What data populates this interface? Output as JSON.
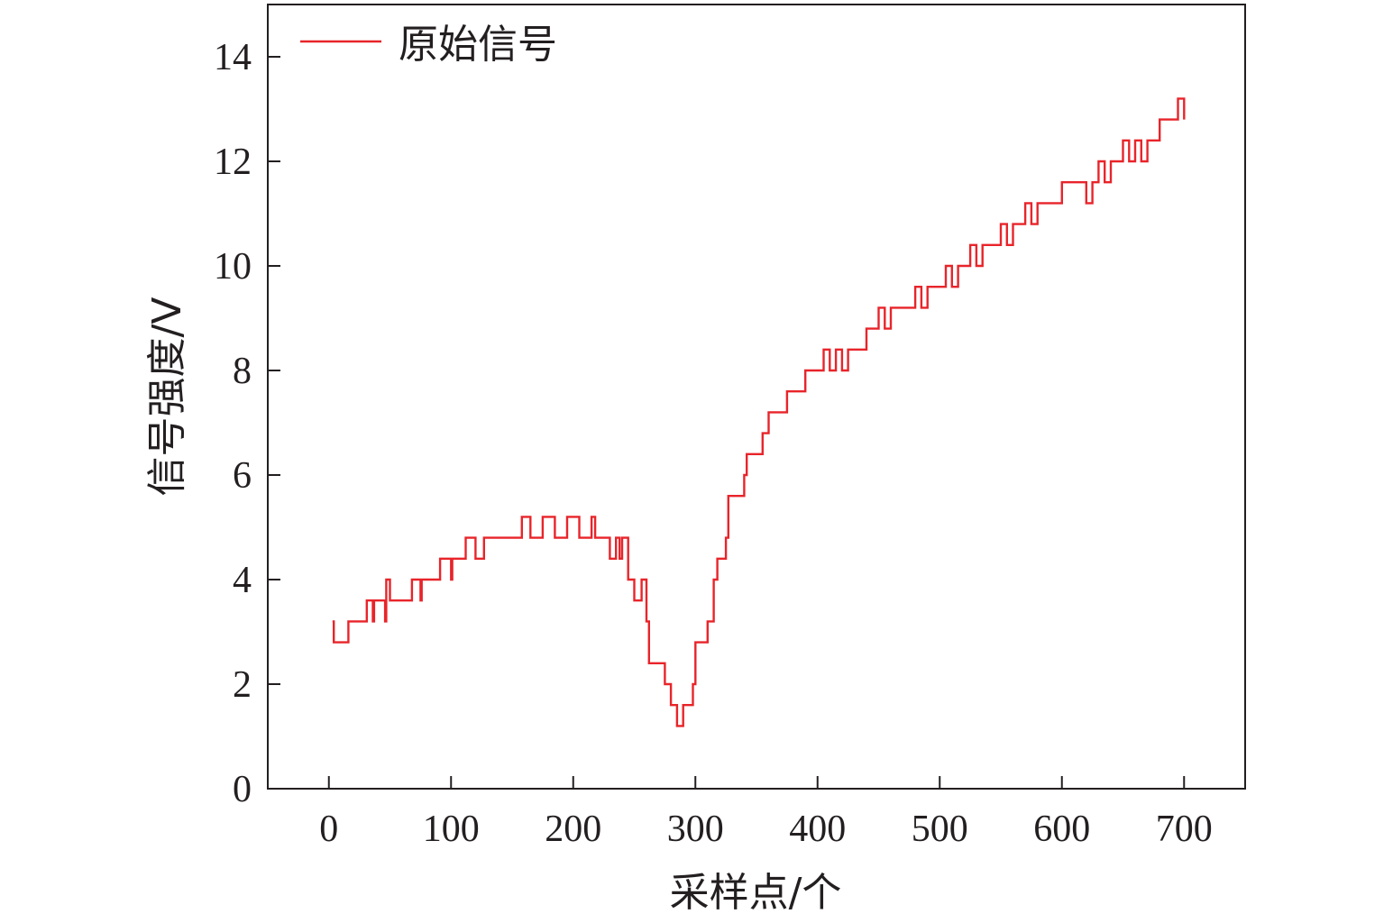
{
  "chart_data": {
    "type": "line",
    "title": "",
    "xlabel": "采样点/个",
    "ylabel": "信号强度/V",
    "xlim": [
      -50,
      750
    ],
    "ylim": [
      0,
      15
    ],
    "xticks": [
      0,
      100,
      200,
      300,
      400,
      500,
      600,
      700
    ],
    "yticks": [
      0,
      2,
      4,
      6,
      8,
      10,
      12,
      14
    ],
    "grid": false,
    "legend_position": "top-left",
    "series": [
      {
        "name": "原始信号",
        "color": "#e8242a",
        "x": [
          3,
          4,
          5,
          15,
          16,
          20,
          30,
          31,
          36,
          37,
          46,
          47,
          50,
          60,
          67,
          68,
          75,
          76,
          80,
          90,
          91,
          100,
          101,
          110,
          112,
          120,
          125,
          127,
          135,
          140,
          150,
          155,
          158,
          165,
          175,
          185,
          195,
          205,
          215,
          218,
          222,
          225,
          230,
          235,
          238,
          240,
          245,
          250,
          255,
          256,
          260,
          262,
          268,
          270,
          275,
          280,
          282,
          285,
          290,
          296,
          298,
          300,
          305,
          310,
          312,
          315,
          318,
          320,
          325,
          327,
          335,
          340,
          342,
          350,
          355,
          360,
          365,
          370,
          375,
          380,
          385,
          390,
          395,
          400,
          405,
          410,
          415,
          420,
          425,
          430,
          435,
          440,
          445,
          450,
          455,
          460,
          465,
          470,
          475,
          480,
          485,
          490,
          495,
          500,
          505,
          510,
          515,
          520,
          525,
          530,
          535,
          540,
          545,
          550,
          555,
          560,
          565,
          570,
          575,
          580,
          585,
          590,
          595,
          600,
          605,
          610,
          615,
          620,
          625,
          630,
          635,
          640,
          645,
          650,
          655,
          660,
          665,
          670,
          675,
          680,
          685,
          690,
          695,
          700
        ],
        "y": [
          3.2,
          2.8,
          2.8,
          2.8,
          3.2,
          3.2,
          3.2,
          3.6,
          3.2,
          3.6,
          3.2,
          4.0,
          3.6,
          3.6,
          3.6,
          4.0,
          3.6,
          4.0,
          4.0,
          4.0,
          4.4,
          4.0,
          4.4,
          4.4,
          4.8,
          4.4,
          4.4,
          4.8,
          4.8,
          4.8,
          4.8,
          4.8,
          5.2,
          4.8,
          5.2,
          4.8,
          5.2,
          4.8,
          5.2,
          4.8,
          4.8,
          4.8,
          4.4,
          4.8,
          4.4,
          4.8,
          4.0,
          3.6,
          3.6,
          4.0,
          3.2,
          2.4,
          2.4,
          2.4,
          2.0,
          1.6,
          1.6,
          1.2,
          1.6,
          1.6,
          2.0,
          2.8,
          2.8,
          3.2,
          3.2,
          4.0,
          4.4,
          4.4,
          4.8,
          5.6,
          5.6,
          6.0,
          6.4,
          6.4,
          6.8,
          7.2,
          7.2,
          7.2,
          7.6,
          7.6,
          7.6,
          8.0,
          8.0,
          8.0,
          8.4,
          8.0,
          8.4,
          8.0,
          8.4,
          8.4,
          8.4,
          8.8,
          8.8,
          9.2,
          8.8,
          9.2,
          9.2,
          9.2,
          9.2,
          9.6,
          9.2,
          9.6,
          9.6,
          9.6,
          10.0,
          9.6,
          10.0,
          10.0,
          10.4,
          10.0,
          10.4,
          10.4,
          10.4,
          10.8,
          10.4,
          10.8,
          10.8,
          11.2,
          10.8,
          11.2,
          11.2,
          11.2,
          11.2,
          11.6,
          11.6,
          11.6,
          11.6,
          11.2,
          11.6,
          12.0,
          11.6,
          12.0,
          12.0,
          12.4,
          12.0,
          12.4,
          12.0,
          12.4,
          12.4,
          12.8,
          12.8,
          12.8,
          13.2,
          12.8
        ]
      }
    ]
  }
}
